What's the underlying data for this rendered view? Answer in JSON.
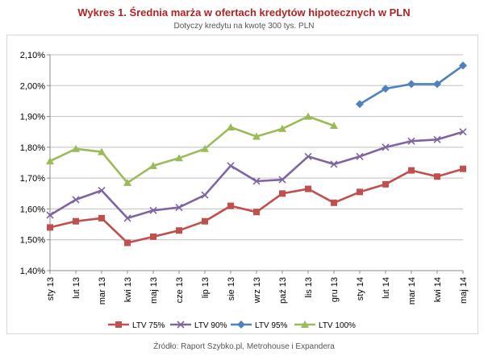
{
  "header": {
    "title": "Wykres 1. Średnia marża w ofertach kredytów hipotecznych  w PLN",
    "subtitle": "Dotyczy kredytu na kwotę 300 tys. PLN"
  },
  "footer": {
    "source": "Źródło: Raport Szybko.pl, Metrohouse i Expandera"
  },
  "chart_data": {
    "type": "line",
    "title": "Wykres 1. Średnia marża w ofertach kredytów hipotecznych  w PLN",
    "subtitle": "Dotyczy kredytu na kwotę 300 tys. PLN",
    "xlabel": "",
    "ylabel": "",
    "ylim": [
      1.4,
      2.1
    ],
    "yticks": [
      "1,40%",
      "1,50%",
      "1,60%",
      "1,70%",
      "1,80%",
      "1,90%",
      "2,00%",
      "2,10%"
    ],
    "grid": true,
    "legend_position": "bottom",
    "categories": [
      "sty 13",
      "lut 13",
      "mar 13",
      "kwi 13",
      "maj 13",
      "cze 13",
      "lip 13",
      "sie 13",
      "wrz 13",
      "paź 13",
      "lis 13",
      "gru 13",
      "sty 14",
      "lut 14",
      "mar 14",
      "kwi 14",
      "maj 14"
    ],
    "series": [
      {
        "name": "LTV 75%",
        "color": "#c0504d",
        "marker": "square",
        "values": [
          1.54,
          1.56,
          1.57,
          1.49,
          1.51,
          1.53,
          1.56,
          1.61,
          1.59,
          1.65,
          1.665,
          1.62,
          1.655,
          1.68,
          1.725,
          1.705,
          1.73
        ]
      },
      {
        "name": "LTV 90%",
        "color": "#8064a2",
        "marker": "x",
        "values": [
          1.58,
          1.63,
          1.66,
          1.57,
          1.595,
          1.605,
          1.645,
          1.74,
          1.69,
          1.695,
          1.77,
          1.745,
          1.77,
          1.8,
          1.82,
          1.825,
          1.85
        ]
      },
      {
        "name": "LTV 95%",
        "color": "#4f81bd",
        "marker": "diamond",
        "values": [
          null,
          null,
          null,
          null,
          null,
          null,
          null,
          null,
          null,
          null,
          null,
          null,
          1.94,
          1.99,
          2.005,
          2.005,
          2.065
        ]
      },
      {
        "name": "LTV 100%",
        "color": "#9bbb59",
        "marker": "triangle",
        "values": [
          1.755,
          1.795,
          1.785,
          1.685,
          1.74,
          1.765,
          1.795,
          1.865,
          1.835,
          1.86,
          1.9,
          1.87,
          null,
          null,
          null,
          null,
          null
        ]
      }
    ]
  }
}
